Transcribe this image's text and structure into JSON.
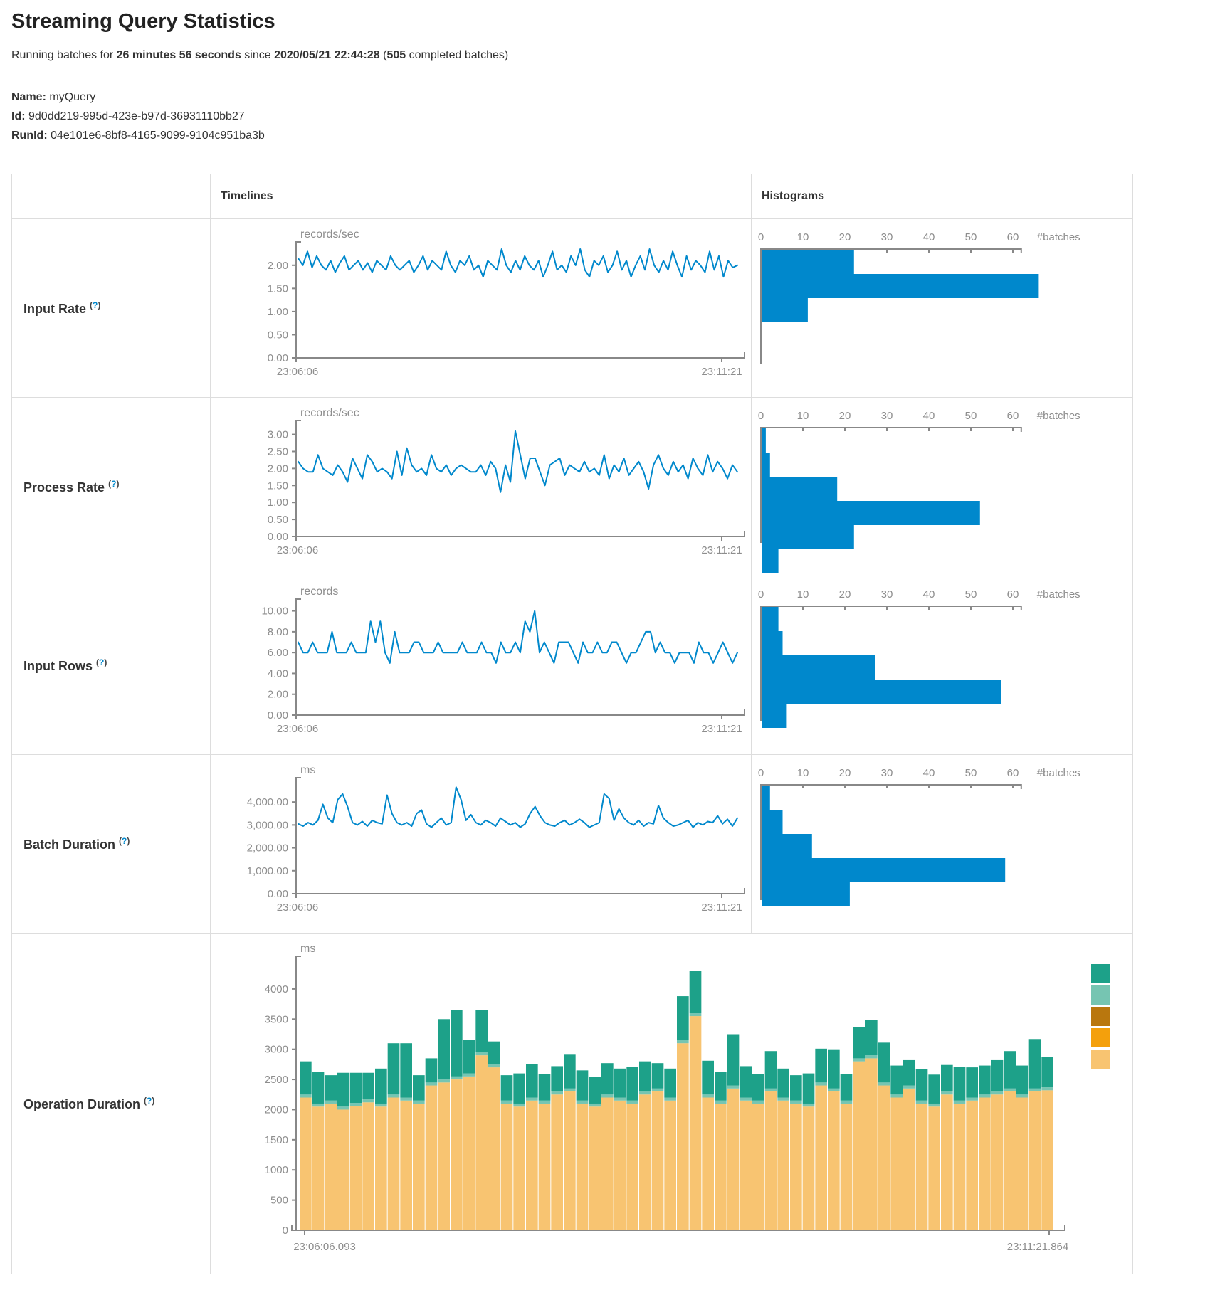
{
  "page": {
    "title": "Streaming Query Statistics",
    "subtitle": {
      "p1": "Running batches for ",
      "duration": "26 minutes 56 seconds",
      "p2": " since ",
      "start_time": "2020/05/21 22:44:28",
      "p3": " (",
      "completed_batches": "505",
      "p4": " completed batches)"
    },
    "meta": {
      "name_label": "Name:",
      "name_value": "myQuery",
      "id_label": "Id:",
      "id_value": "9d0dd219-995d-423e-b97d-36931110bb27",
      "runid_label": "RunId:",
      "runid_value": "04e101e6-8bf8-4165-9099-9104c951ba3b"
    }
  },
  "table": {
    "col_timelines": "Timelines",
    "col_histograms": "Histograms",
    "help_open": "(",
    "help_q": "?",
    "help_close": ")",
    "rows": [
      {
        "label": "Input Rate"
      },
      {
        "label": "Process Rate"
      },
      {
        "label": "Input Rows"
      },
      {
        "label": "Batch Duration"
      },
      {
        "label": "Operation Duration"
      }
    ]
  },
  "colors": {
    "line": "#0088cc",
    "hist_bar": "#0088cc",
    "axis_line": "#888888",
    "axis_text": "#8d8d8d",
    "border": "#dddddd",
    "help": "#0088cc",
    "stack_palette": [
      "#f8c471",
      "#f4a00c",
      "#b9770e",
      "#76c5b2",
      "#1da189"
    ]
  },
  "chart_data": [
    {
      "name": "input-rate",
      "timeline": {
        "type": "line",
        "unit": "records/sec",
        "ytop": 2.35,
        "yticks": [
          {
            "v": 2,
            "t": "2.00"
          },
          {
            "v": 1.5,
            "t": "1.50"
          },
          {
            "v": 1,
            "t": "1.00"
          },
          {
            "v": 0.5,
            "t": "0.50"
          },
          {
            "v": 0,
            "t": "0.00"
          }
        ],
        "x_start": "23:06:06",
        "x_end": "23:11:21",
        "values": [
          2.15,
          2.0,
          2.3,
          1.95,
          2.2,
          2.0,
          1.9,
          2.1,
          1.85,
          2.05,
          2.2,
          1.9,
          2.0,
          2.1,
          1.9,
          2.05,
          1.85,
          2.1,
          2.0,
          1.9,
          2.2,
          2.0,
          1.9,
          2.0,
          2.1,
          1.85,
          2.0,
          2.2,
          1.9,
          2.1,
          2.0,
          1.9,
          2.3,
          2.0,
          1.85,
          2.1,
          2.0,
          2.2,
          1.9,
          2.0,
          1.75,
          2.1,
          2.0,
          1.9,
          2.35,
          2.0,
          1.85,
          2.1,
          1.9,
          2.2,
          2.0,
          1.9,
          2.1,
          1.75,
          2.0,
          2.3,
          1.9,
          2.0,
          1.85,
          2.2,
          2.0,
          2.35,
          1.9,
          1.75,
          2.1,
          2.0,
          2.2,
          1.85,
          2.0,
          2.3,
          1.9,
          2.1,
          1.75,
          2.0,
          2.2,
          1.9,
          2.35,
          2.0,
          1.85,
          2.1,
          1.9,
          2.3,
          2.0,
          1.75,
          2.2,
          1.9,
          2.1,
          2.0,
          1.85,
          2.3,
          1.9,
          2.2,
          1.75,
          2.1,
          1.95,
          2.0
        ]
      },
      "histogram": {
        "type": "bar",
        "unit": "#batches",
        "ticks": [
          0,
          10,
          20,
          30,
          40,
          50,
          60
        ],
        "bars": [
          22,
          66,
          11
        ]
      }
    },
    {
      "name": "process-rate",
      "timeline": {
        "type": "line",
        "unit": "records/sec",
        "ytop": 3.2,
        "yticks": [
          {
            "v": 3,
            "t": "3.00"
          },
          {
            "v": 2.5,
            "t": "2.50"
          },
          {
            "v": 2,
            "t": "2.00"
          },
          {
            "v": 1.5,
            "t": "1.50"
          },
          {
            "v": 1,
            "t": "1.00"
          },
          {
            "v": 0.5,
            "t": "0.50"
          },
          {
            "v": 0,
            "t": "0.00"
          }
        ],
        "x_start": "23:06:06",
        "x_end": "23:11:21",
        "values": [
          2.2,
          2.0,
          1.9,
          1.9,
          2.4,
          2.0,
          1.9,
          1.8,
          2.1,
          1.9,
          1.6,
          2.3,
          2.0,
          1.7,
          2.4,
          2.2,
          1.9,
          2.0,
          1.9,
          1.7,
          2.5,
          1.8,
          2.6,
          2.1,
          1.9,
          2.0,
          1.8,
          2.4,
          2.0,
          1.9,
          2.1,
          1.8,
          2.0,
          2.1,
          2.0,
          1.9,
          1.9,
          2.1,
          1.8,
          2.2,
          2.0,
          1.3,
          2.1,
          1.6,
          3.1,
          2.4,
          1.7,
          2.3,
          2.3,
          1.9,
          1.5,
          2.1,
          2.2,
          2.3,
          1.8,
          2.1,
          2.0,
          1.9,
          2.2,
          1.9,
          2.0,
          1.8,
          2.4,
          1.7,
          2.1,
          1.9,
          2.3,
          1.8,
          2.0,
          2.2,
          1.9,
          1.4,
          2.1,
          2.4,
          2.0,
          1.8,
          2.2,
          1.9,
          2.1,
          1.7,
          2.3,
          2.0,
          1.8,
          2.4,
          1.9,
          2.2,
          2.0,
          1.7,
          2.1,
          1.9
        ]
      },
      "histogram": {
        "type": "bar",
        "unit": "#batches",
        "ticks": [
          0,
          10,
          20,
          30,
          40,
          50,
          60
        ],
        "bars": [
          1,
          2,
          18,
          52,
          22,
          4
        ]
      }
    },
    {
      "name": "input-rows",
      "timeline": {
        "type": "line",
        "unit": "records",
        "ytop": 10.45,
        "yticks": [
          {
            "v": 10,
            "t": "10.00"
          },
          {
            "v": 8,
            "t": "8.00"
          },
          {
            "v": 6,
            "t": "6.00"
          },
          {
            "v": 4,
            "t": "4.00"
          },
          {
            "v": 2,
            "t": "2.00"
          },
          {
            "v": 0,
            "t": "0.00"
          }
        ],
        "x_start": "23:06:06",
        "x_end": "23:11:21",
        "values": [
          7,
          6,
          6,
          7,
          6,
          6,
          6,
          8,
          6,
          6,
          6,
          7,
          6,
          6,
          6,
          9,
          7,
          9,
          6,
          5,
          8,
          6,
          6,
          6,
          7,
          7,
          6,
          6,
          6,
          7,
          6,
          6,
          6,
          6,
          7,
          6,
          6,
          6,
          7,
          6,
          6,
          5,
          7,
          6,
          6,
          7,
          6,
          9,
          8,
          10,
          6,
          7,
          6,
          5,
          7,
          7,
          7,
          6,
          5,
          7,
          6,
          6,
          7,
          6,
          6,
          7,
          7,
          6,
          5,
          6,
          6,
          7,
          8,
          8,
          6,
          7,
          6,
          6,
          5,
          6,
          6,
          6,
          5,
          7,
          6,
          6,
          5,
          6,
          7,
          6,
          5,
          6
        ]
      },
      "histogram": {
        "type": "bar",
        "unit": "#batches",
        "ticks": [
          0,
          10,
          20,
          30,
          40,
          50,
          60
        ],
        "bars": [
          4,
          5,
          27,
          57,
          6
        ]
      }
    },
    {
      "name": "batch-duration",
      "timeline": {
        "type": "line",
        "unit": "ms",
        "ytop": 4750,
        "yticks": [
          {
            "v": 4000,
            "t": "4,000.00"
          },
          {
            "v": 3000,
            "t": "3,000.00"
          },
          {
            "v": 2000,
            "t": "2,000.00"
          },
          {
            "v": 1000,
            "t": "1,000.00"
          },
          {
            "v": 0,
            "t": "0.00"
          }
        ],
        "x_start": "23:06:06",
        "x_end": "23:11:21",
        "values": [
          3050,
          2950,
          3100,
          3000,
          3200,
          3900,
          3300,
          3100,
          4100,
          4350,
          3800,
          3100,
          3000,
          3150,
          2950,
          3200,
          3100,
          3050,
          4300,
          3500,
          3100,
          3000,
          3100,
          2950,
          3500,
          3650,
          3050,
          2900,
          3100,
          3300,
          3000,
          3100,
          4650,
          4100,
          3200,
          3450,
          3100,
          3000,
          3200,
          3100,
          2950,
          3300,
          3150,
          3000,
          3100,
          2900,
          3050,
          3500,
          3800,
          3400,
          3100,
          3000,
          2950,
          3100,
          3200,
          3000,
          3100,
          3250,
          3100,
          2900,
          3000,
          3100,
          4350,
          4150,
          3200,
          3700,
          3300,
          3100,
          3000,
          3200,
          2950,
          3100,
          3050,
          3850,
          3300,
          3100,
          2950,
          3000,
          3100,
          3200,
          2900,
          3100,
          3000,
          3150,
          3100,
          3400,
          3050,
          3250,
          2950,
          3300
        ]
      },
      "histogram": {
        "type": "bar",
        "unit": "#batches",
        "ticks": [
          0,
          10,
          20,
          30,
          40,
          50,
          60
        ],
        "bars": [
          2,
          5,
          12,
          58,
          21
        ]
      }
    },
    {
      "name": "operation-duration",
      "type": "stacked_bar",
      "unit": "ms",
      "ytop": 4400,
      "yticks": [
        {
          "v": 4000,
          "t": "4000"
        },
        {
          "v": 3500,
          "t": "3500"
        },
        {
          "v": 3000,
          "t": "3000"
        },
        {
          "v": 2500,
          "t": "2500"
        },
        {
          "v": 2000,
          "t": "2000"
        },
        {
          "v": 1500,
          "t": "1500"
        },
        {
          "v": 1000,
          "t": "1000"
        },
        {
          "v": 500,
          "t": "500"
        },
        {
          "v": 0,
          "t": "0"
        }
      ],
      "x_start": "23:06:06.093",
      "x_end": "23:11:21.864",
      "legend_colors": [
        "#1da189",
        "#76c5b2",
        "#b9770e",
        "#f4a00c",
        "#f8c471"
      ],
      "series": [
        {
          "color": "#f8c471",
          "values": [
            2200,
            2050,
            2100,
            2000,
            2060,
            2120,
            2050,
            2200,
            2150,
            2100,
            2400,
            2450,
            2500,
            2550,
            2900,
            2700,
            2100,
            2050,
            2150,
            2100,
            2250,
            2300,
            2100,
            2050,
            2200,
            2150,
            2100,
            2250,
            2300,
            2150,
            3100,
            3550,
            2200,
            2100,
            2350,
            2150,
            2100,
            2300,
            2150,
            2100,
            2050,
            2400,
            2300,
            2100,
            2800,
            2850,
            2400,
            2200,
            2350,
            2100,
            2050,
            2250,
            2100,
            2150,
            2200,
            2250,
            2300,
            2200,
            2300,
            2320
          ]
        },
        {
          "color": "#f4a00c",
          "values": [
            0,
            0,
            0,
            0,
            0,
            0,
            0,
            0,
            0,
            0,
            0,
            0,
            0,
            0,
            0,
            0,
            0,
            0,
            0,
            0,
            0,
            0,
            0,
            0,
            0,
            0,
            0,
            0,
            0,
            0,
            0,
            0,
            0,
            0,
            0,
            0,
            0,
            0,
            0,
            0,
            0,
            0,
            0,
            0,
            0,
            0,
            0,
            0,
            0,
            0,
            0,
            0,
            0,
            0,
            0,
            0,
            0,
            0,
            0,
            0
          ]
        },
        {
          "color": "#b9770e",
          "values": [
            0,
            0,
            0,
            0,
            0,
            0,
            0,
            0,
            0,
            0,
            0,
            0,
            0,
            0,
            0,
            0,
            0,
            0,
            0,
            0,
            0,
            0,
            0,
            0,
            0,
            0,
            0,
            0,
            0,
            0,
            0,
            0,
            0,
            0,
            0,
            0,
            0,
            0,
            0,
            0,
            0,
            0,
            0,
            0,
            0,
            0,
            0,
            0,
            0,
            0,
            0,
            0,
            0,
            0,
            0,
            0,
            0,
            0,
            0,
            0
          ]
        },
        {
          "color": "#76c5b2",
          "values": [
            50,
            50,
            50,
            50,
            50,
            50,
            50,
            50,
            50,
            50,
            50,
            50,
            50,
            50,
            50,
            50,
            50,
            50,
            50,
            50,
            50,
            50,
            50,
            50,
            50,
            50,
            50,
            50,
            50,
            50,
            50,
            50,
            50,
            50,
            50,
            50,
            50,
            50,
            50,
            50,
            50,
            50,
            50,
            50,
            50,
            50,
            50,
            50,
            50,
            50,
            50,
            50,
            50,
            50,
            50,
            50,
            50,
            50,
            50,
            50
          ]
        },
        {
          "color": "#1da189",
          "values": [
            550,
            520,
            420,
            560,
            500,
            440,
            580,
            850,
            900,
            420,
            400,
            1000,
            1100,
            560,
            700,
            380,
            420,
            500,
            560,
            440,
            420,
            560,
            500,
            440,
            520,
            480,
            560,
            500,
            420,
            480,
            730,
            700,
            560,
            480,
            850,
            520,
            440,
            620,
            480,
            420,
            500,
            560,
            650,
            440,
            520,
            580,
            660,
            480,
            420,
            520,
            480,
            440,
            560,
            500,
            480,
            520,
            620,
            480,
            820,
            500
          ]
        }
      ]
    }
  ]
}
